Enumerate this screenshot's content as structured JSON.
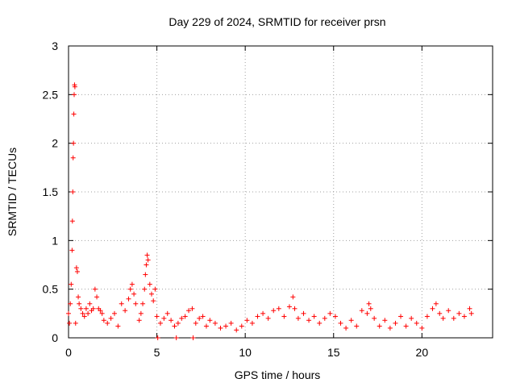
{
  "chart_data": {
    "type": "scatter",
    "title": "Day 229 of 2024, SRMTID for receiver prsn",
    "xlabel": "GPS time / hours",
    "ylabel": "SRMTID / TECUs",
    "xlim": [
      0,
      24
    ],
    "ylim": [
      0,
      3
    ],
    "xticks": [
      0,
      5,
      10,
      15,
      20
    ],
    "yticks": [
      0,
      0.5,
      1,
      1.5,
      2,
      2.5,
      3
    ],
    "ytick_labels": [
      "0",
      "0.5",
      "1",
      "1.5",
      "2",
      "2.5",
      "3"
    ],
    "grid": true,
    "marker": "+",
    "color": "#ff0000",
    "series": [
      {
        "name": "SRMTID",
        "x": [
          0.0,
          0.05,
          0.1,
          0.15,
          0.2,
          0.22,
          0.24,
          0.26,
          0.28,
          0.3,
          0.32,
          0.34,
          0.36,
          0.4,
          0.45,
          0.5,
          0.55,
          0.6,
          0.7,
          0.8,
          0.9,
          1.0,
          1.1,
          1.2,
          1.3,
          1.4,
          1.5,
          1.6,
          1.7,
          1.8,
          1.9,
          2.0,
          2.2,
          2.4,
          2.6,
          2.8,
          3.0,
          3.2,
          3.4,
          3.5,
          3.6,
          3.7,
          3.8,
          4.0,
          4.1,
          4.2,
          4.3,
          4.35,
          4.4,
          4.45,
          4.5,
          4.6,
          4.7,
          4.8,
          4.9,
          5.0,
          5.2,
          5.4,
          5.6,
          5.8,
          6.0,
          6.2,
          6.4,
          6.6,
          6.8,
          7.0,
          7.2,
          7.4,
          7.6,
          7.8,
          8.0,
          8.3,
          8.6,
          8.9,
          9.2,
          9.5,
          9.8,
          10.1,
          10.4,
          10.7,
          11.0,
          11.3,
          11.6,
          11.9,
          12.2,
          12.5,
          12.7,
          12.8,
          13.0,
          13.3,
          13.6,
          13.9,
          14.2,
          14.5,
          14.8,
          15.1,
          15.4,
          15.7,
          16.0,
          16.3,
          16.6,
          16.9,
          17.0,
          17.1,
          17.3,
          17.6,
          17.9,
          18.2,
          18.5,
          18.8,
          19.1,
          19.4,
          19.7,
          20.0,
          20.3,
          20.6,
          20.8,
          21.0,
          21.2,
          21.5,
          21.8,
          22.1,
          22.4,
          22.7,
          22.8,
          5.05,
          6.1,
          7.05
        ],
        "y": [
          0.25,
          0.15,
          0.35,
          0.55,
          0.9,
          1.2,
          1.5,
          1.85,
          2.0,
          2.3,
          2.5,
          2.6,
          2.58,
          0.15,
          0.72,
          0.68,
          0.42,
          0.35,
          0.3,
          0.25,
          0.22,
          0.3,
          0.25,
          0.35,
          0.28,
          0.3,
          0.5,
          0.42,
          0.3,
          0.28,
          0.25,
          0.18,
          0.15,
          0.2,
          0.25,
          0.12,
          0.35,
          0.28,
          0.4,
          0.5,
          0.55,
          0.45,
          0.35,
          0.18,
          0.25,
          0.35,
          0.5,
          0.65,
          0.75,
          0.85,
          0.8,
          0.55,
          0.45,
          0.38,
          0.5,
          0.22,
          0.15,
          0.2,
          0.25,
          0.18,
          0.12,
          0.15,
          0.2,
          0.22,
          0.28,
          0.3,
          0.15,
          0.2,
          0.22,
          0.12,
          0.18,
          0.15,
          0.1,
          0.12,
          0.15,
          0.08,
          0.12,
          0.18,
          0.15,
          0.22,
          0.25,
          0.2,
          0.28,
          0.3,
          0.22,
          0.32,
          0.42,
          0.3,
          0.2,
          0.25,
          0.18,
          0.22,
          0.15,
          0.2,
          0.25,
          0.22,
          0.15,
          0.1,
          0.18,
          0.12,
          0.28,
          0.25,
          0.35,
          0.3,
          0.2,
          0.12,
          0.18,
          0.1,
          0.15,
          0.22,
          0.12,
          0.2,
          0.15,
          0.1,
          0.22,
          0.3,
          0.35,
          0.25,
          0.2,
          0.28,
          0.2,
          0.25,
          0.22,
          0.3,
          0.25,
          0.0,
          0.0,
          0.0
        ]
      }
    ]
  }
}
